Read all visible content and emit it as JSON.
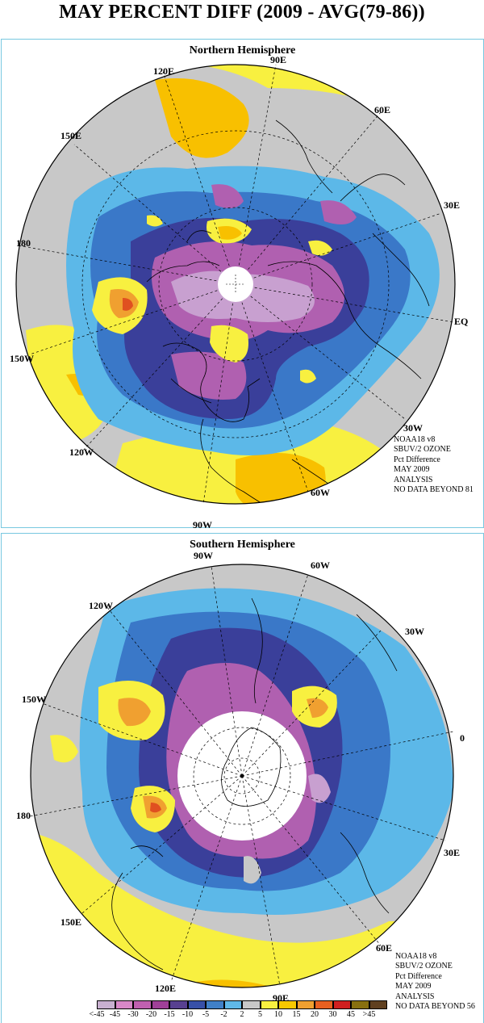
{
  "title": "MAY PERCENT DIFF (2009 - AVG(79-86))",
  "north": {
    "title": "Northern Hemisphere",
    "labels": [
      "90E",
      "120E",
      "60E",
      "150E",
      "30E",
      "180",
      "EQ",
      "150W",
      "30W",
      "120W",
      "90W",
      "60W"
    ],
    "info": [
      "NOAA18 v8",
      "SBUV/2 OZONE",
      "Pct Difference",
      "MAY 2009",
      "ANALYSIS",
      "NO DATA BEYOND  81"
    ]
  },
  "south": {
    "title": "Southern Hemisphere",
    "labels": [
      "90W",
      "60W",
      "120W",
      "30W",
      "150W",
      "0",
      "180",
      "30E",
      "150E",
      "60E",
      "120E",
      "90E"
    ],
    "info": [
      "NOAA18 v8",
      "SBUV/2 OZONE",
      "Pct Difference",
      "MAY 2009",
      "ANALYSIS",
      "NO DATA BEYOND  56"
    ]
  },
  "legend": {
    "labels": [
      "<-45",
      "-45",
      "-30",
      "-20",
      "-15",
      "-10",
      "-5",
      "-2",
      "2",
      "5",
      "10",
      "15",
      "20",
      "30",
      "45",
      ">45"
    ],
    "colors": [
      "#c8b0d0",
      "#d888c8",
      "#c060b0",
      "#a04098",
      "#584090",
      "#3850a8",
      "#4080c8",
      "#60b8e8",
      "#c8c8c8",
      "#f8f040",
      "#f8c800",
      "#f0a030",
      "#e86020",
      "#d02020",
      "#887010",
      "#604020"
    ]
  },
  "colors": {
    "very_neg": "#c8a0d0",
    "neg_purple": "#b060b0",
    "neg_dark": "#3a3f9a",
    "neg_blue": "#3a78c8",
    "neg_light": "#5cb8e8",
    "neutral": "#c8c8c8",
    "pos_yellow": "#f8f040",
    "pos_gold": "#f8c000",
    "pos_orange": "#f0a030",
    "pos_red": "#e05020",
    "panel_border": "#78c8e0"
  }
}
